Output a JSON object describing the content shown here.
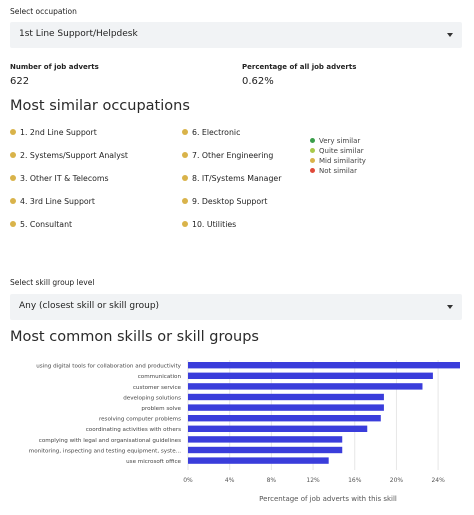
{
  "occupation": {
    "label": "Select occupation",
    "selected": "1st Line Support/Helpdesk"
  },
  "stats": {
    "adverts_label": "Number of job adverts",
    "adverts_value": "622",
    "percentage_label": "Percentage of all job adverts",
    "percentage_value": "0.62%"
  },
  "similar": {
    "title": "Most similar occupations",
    "items": [
      {
        "label": "1. 2nd Line Support",
        "similarity": "Mid similarity"
      },
      {
        "label": "2. Systems/Support Analyst",
        "similarity": "Mid similarity"
      },
      {
        "label": "3. Other IT & Telecoms",
        "similarity": "Mid similarity"
      },
      {
        "label": "4. 3rd Line Support",
        "similarity": "Mid similarity"
      },
      {
        "label": "5. Consultant",
        "similarity": "Mid similarity"
      },
      {
        "label": "6. Electronic",
        "similarity": "Mid similarity"
      },
      {
        "label": "7. Other Engineering",
        "similarity": "Mid similarity"
      },
      {
        "label": "8. IT/Systems Manager",
        "similarity": "Mid similarity"
      },
      {
        "label": "9. Desktop Support",
        "similarity": "Mid similarity"
      },
      {
        "label": "10. Utilities",
        "similarity": "Mid similarity"
      }
    ],
    "legend": [
      {
        "label": "Very similar",
        "color": "#3a9e4a"
      },
      {
        "label": "Quite similar",
        "color": "#a8c94a"
      },
      {
        "label": "Mid similarity",
        "color": "#d9b34a"
      },
      {
        "label": "Not similar",
        "color": "#e04a3a"
      }
    ]
  },
  "skill_group": {
    "label": "Select skill group level",
    "selected": "Any (closest skill or skill group)"
  },
  "skills": {
    "title": "Most common skills or skill groups"
  },
  "chart_data": {
    "type": "bar",
    "orientation": "horizontal",
    "categories": [
      "using digital tools for collaboration and productivity",
      "communication",
      "customer service",
      "developing solutions",
      "problem solve",
      "resolving computer problems",
      "coordinating activities with others",
      "complying with legal and organisational guidelines",
      "monitoring, inspecting and testing equipment, syste...",
      "use microsoft office"
    ],
    "values": [
      26.1,
      23.5,
      22.5,
      18.8,
      18.8,
      18.5,
      17.2,
      14.8,
      14.8,
      13.5
    ],
    "xlabel": "Percentage of job adverts with this skill",
    "ylabel": "",
    "xlim": [
      0,
      26.1
    ],
    "ticks": [
      "0%",
      "4%",
      "8%",
      "12%",
      "16%",
      "20%",
      "24%"
    ],
    "tick_values": [
      0,
      4,
      8,
      12,
      16,
      20,
      24
    ],
    "bar_color": "#3a3ddb",
    "grid": true
  }
}
